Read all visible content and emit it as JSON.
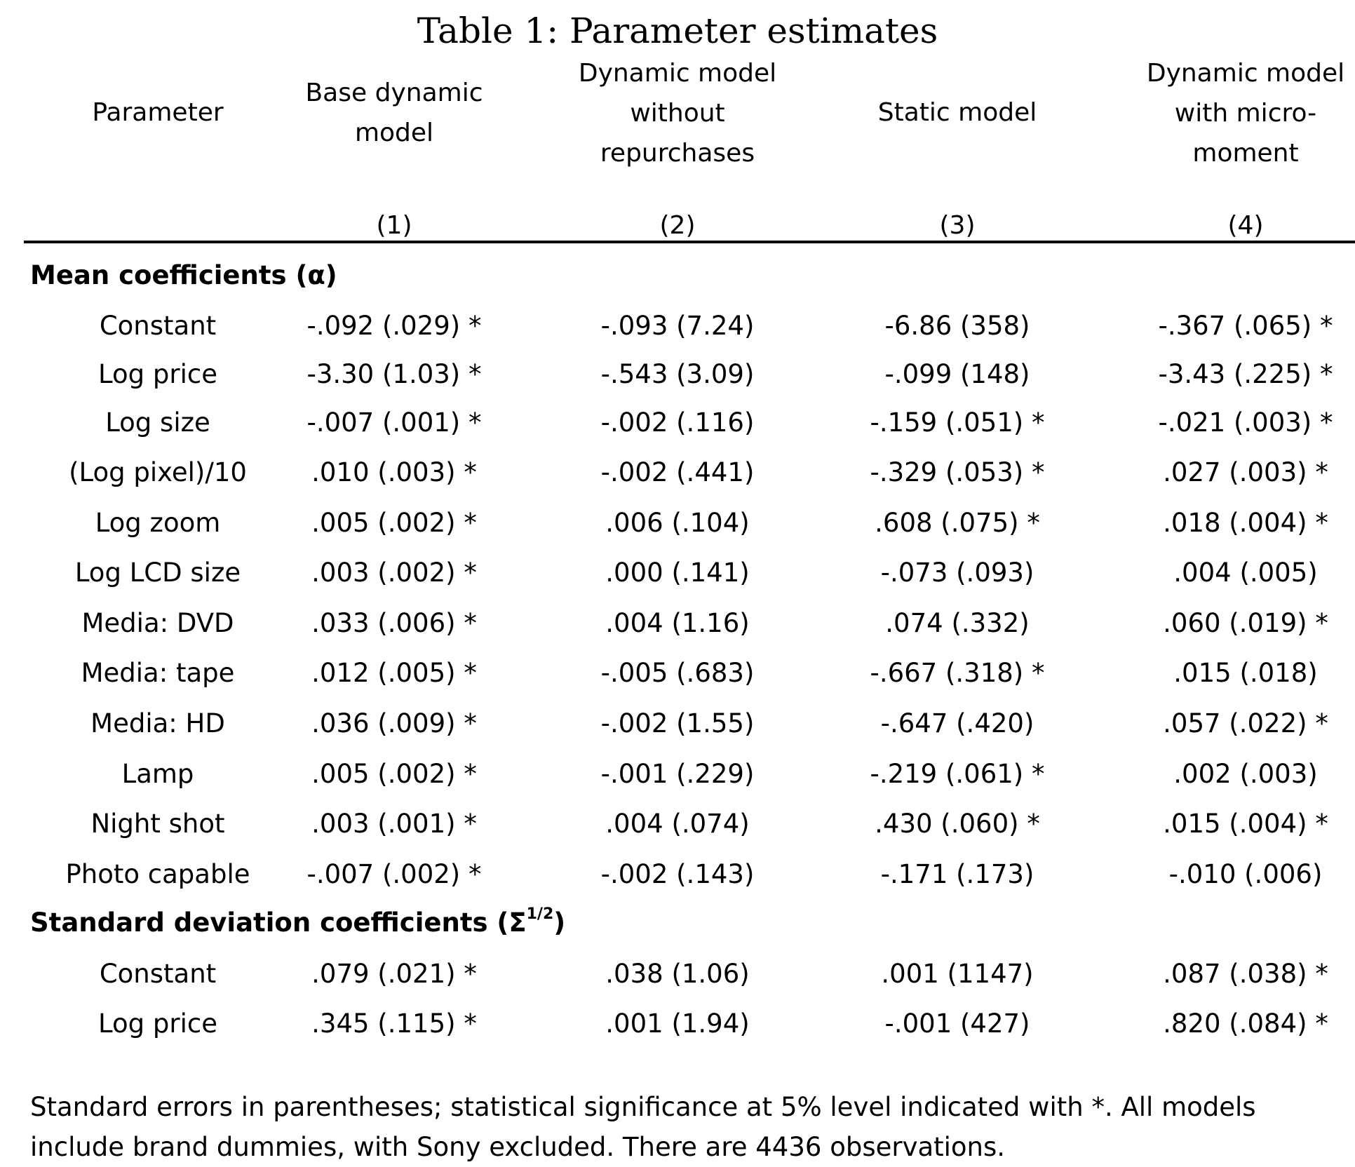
{
  "title": "Table 1:  Parameter estimates",
  "headers": {
    "parameter": "Parameter",
    "col1": [
      "Base dynamic",
      "model"
    ],
    "col2": [
      "Dynamic model",
      "without",
      "repurchases"
    ],
    "col3": "Static model",
    "col4": [
      "Dynamic model",
      "with micro-",
      "moment"
    ]
  },
  "col_numbers": [
    "(1)",
    "(2)",
    "(3)",
    "(4)"
  ],
  "sections": {
    "mean": {
      "label": "Mean coefficients (α)"
    },
    "sd": {
      "label": "Standard deviation coefficients (Σ",
      "sup": "1/2",
      "close": ")"
    }
  },
  "mean_rows": [
    {
      "param": "Constant",
      "c1": "-.092 (.029) *",
      "c2": "-.093 (7.24)",
      "c3": "-6.86 (358)",
      "c4": "-.367 (.065) *"
    },
    {
      "param": "Log price",
      "c1": "-3.30 (1.03) *",
      "c2": "-.543 (3.09)",
      "c3": "-.099 (148)",
      "c4": "-3.43 (.225) *"
    },
    {
      "param": "Log size",
      "c1": "-.007 (.001) *",
      "c2": "-.002 (.116)",
      "c3": "-.159 (.051) *",
      "c4": "-.021 (.003) *"
    },
    {
      "param": "(Log pixel)/10",
      "c1": ".010 (.003) *",
      "c2": "-.002 (.441)",
      "c3": "-.329 (.053) *",
      "c4": ".027 (.003) *"
    },
    {
      "param": "Log zoom",
      "c1": ".005 (.002) *",
      "c2": ".006 (.104)",
      "c3": ".608 (.075) *",
      "c4": ".018 (.004) *"
    },
    {
      "param": "Log LCD size",
      "c1": ".003 (.002) *",
      "c2": ".000 (.141)",
      "c3": "-.073 (.093)",
      "c4": ".004 (.005)"
    },
    {
      "param": "Media: DVD",
      "c1": ".033 (.006) *",
      "c2": ".004 (1.16)",
      "c3": ".074 (.332)",
      "c4": ".060 (.019) *"
    },
    {
      "param": "Media: tape",
      "c1": ".012 (.005) *",
      "c2": "-.005 (.683)",
      "c3": "-.667 (.318) *",
      "c4": ".015 (.018)"
    },
    {
      "param": "Media: HD",
      "c1": ".036 (.009) *",
      "c2": "-.002 (1.55)",
      "c3": "-.647 (.420)",
      "c4": ".057 (.022) *"
    },
    {
      "param": "Lamp",
      "c1": ".005 (.002) *",
      "c2": "-.001 (.229)",
      "c3": "-.219 (.061) *",
      "c4": ".002 (.003)"
    },
    {
      "param": "Night shot",
      "c1": ".003 (.001) *",
      "c2": ".004 (.074)",
      "c3": ".430 (.060) *",
      "c4": ".015 (.004) *"
    },
    {
      "param": "Photo capable",
      "c1": "-.007 (.002) *",
      "c2": "-.002 (.143)",
      "c3": "-.171 (.173)",
      "c4": "-.010 (.006)"
    }
  ],
  "sd_rows": [
    {
      "param": "Constant",
      "c1": ".079 (.021) *",
      "c2": ".038 (1.06)",
      "c3": ".001 (1147)",
      "c4": ".087 (.038) *"
    },
    {
      "param": "Log price",
      "c1": ".345 (.115) *",
      "c2": ".001 (1.94)",
      "c3": "-.001 (427)",
      "c4": ".820 (.084) *"
    }
  ],
  "note": "Standard errors in parentheses; statistical significance at 5% level indicated with *.  All models include brand dummies, with Sony excluded.  There are 4436 observations."
}
